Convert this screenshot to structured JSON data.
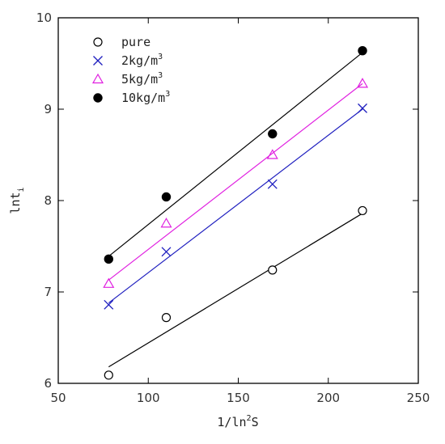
{
  "chart_data": {
    "type": "scatter",
    "xlim": [
      50,
      250
    ],
    "ylim": [
      6,
      10
    ],
    "xticks": [
      50,
      100,
      150,
      200,
      250
    ],
    "yticks": [
      6,
      7,
      8,
      9,
      10
    ],
    "xlabel": {
      "prefix": "1/ln",
      "sup": "2",
      "suffix": "S"
    },
    "ylabel": {
      "prefix": "lnt",
      "sub": "i"
    },
    "grid": false,
    "legend_position": "top-left",
    "series": [
      {
        "name": "pure",
        "marker": "open-circle",
        "color": "#000000",
        "x": [
          78,
          110,
          169,
          219
        ],
        "y": [
          6.09,
          6.72,
          7.24,
          7.89
        ],
        "fit": {
          "x": [
            78,
            219
          ],
          "y": [
            6.18,
            7.86
          ]
        }
      },
      {
        "name": "2kg/m",
        "name_sup": "3",
        "marker": "x",
        "color": "#1f1fbf",
        "x": [
          78,
          110,
          169,
          219
        ],
        "y": [
          6.86,
          7.44,
          8.18,
          9.01
        ],
        "fit": {
          "x": [
            78,
            219
          ],
          "y": [
            6.88,
            9.0
          ]
        }
      },
      {
        "name": "5kg/m",
        "name_sup": "3",
        "marker": "open-triangle",
        "color": "#e020e0",
        "x": [
          78,
          110,
          169,
          219
        ],
        "y": [
          7.09,
          7.75,
          8.5,
          9.28
        ],
        "fit": {
          "x": [
            78,
            219
          ],
          "y": [
            7.13,
            9.28
          ]
        }
      },
      {
        "name": "10kg/m",
        "name_sup": "3",
        "marker": "filled-circle",
        "color": "#000000",
        "x": [
          78,
          110,
          169,
          219
        ],
        "y": [
          7.36,
          8.04,
          8.73,
          9.64
        ],
        "fit": {
          "x": [
            78,
            219
          ],
          "y": [
            7.39,
            9.62
          ]
        }
      }
    ]
  }
}
